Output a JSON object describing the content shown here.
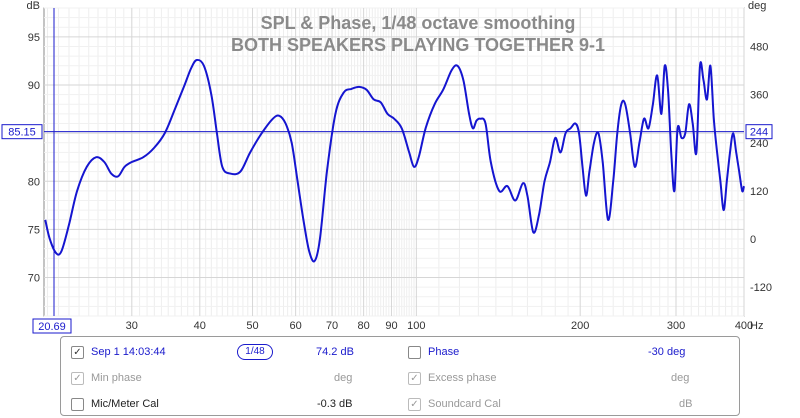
{
  "chart_data": {
    "type": "line",
    "title": "SPL & Phase, 1/48 octave smoothing",
    "subtitle": "BOTH SPEAKERS PLAYING TOGETHER 9-1",
    "y_left_unit": "dB",
    "y_right_unit": "deg",
    "x_unit": "Hz",
    "x_scale": "log",
    "xlim": [
      20.69,
      400
    ],
    "ylim_left": [
      66,
      98
    ],
    "ylim_right": [
      -192,
      576
    ],
    "x_ticks": [
      30,
      40,
      50,
      60,
      70,
      80,
      90,
      100,
      200,
      300,
      400
    ],
    "y_left_ticks": [
      70,
      75,
      80,
      85,
      90,
      95
    ],
    "y_right_ticks": [
      -120,
      0,
      120,
      240,
      360,
      480
    ],
    "cursor_y": "85.15",
    "cursor_y_right": "244",
    "cursor_x": "20.69",
    "grid": true,
    "series": [
      {
        "color": "#1515d0",
        "x": [
          20.8,
          21.2,
          21.8,
          22.3,
          23.0,
          23.8,
          24.8,
          25.8,
          26.7,
          27.5,
          28.3,
          29.1,
          30.0,
          31.5,
          33.0,
          34.5,
          36.0,
          37.5,
          38.6,
          39.5,
          40.7,
          42.0,
          43.0,
          44.0,
          45.5,
          47.5,
          49.5,
          52.0,
          54.5,
          56.0,
          57.5,
          59.0,
          60.5,
          62.0,
          63.5,
          65.0,
          66.5,
          68.5,
          71.0,
          73.5,
          76.0,
          78.5,
          81.0,
          83.5,
          86.0,
          88.5,
          91.0,
          94.0,
          97.0,
          99.0,
          101.0,
          104.0,
          108.0,
          112.0,
          116.0,
          119.0,
          122.0,
          125.0,
          127.0,
          129.0,
          131.0,
          134.0,
          137.0,
          142.0,
          147.0,
          152.0,
          157.0,
          160.0,
          164.0,
          168.0,
          172.0,
          176.0,
          180.0,
          184.0,
          188.0,
          192.0,
          196.0,
          199.0,
          202.0,
          205.0,
          208.0,
          212.0,
          216.0,
          220.0,
          225.0,
          230.0,
          234.0,
          238.0,
          242.0,
          247.0,
          252.0,
          257.0,
          262.0,
          267.0,
          272.0,
          277.0,
          282.0,
          286.0,
          290.0,
          294.0,
          298.0,
          302.0,
          307.0,
          312.0,
          317.0,
          322.0,
          327.0,
          332.0,
          337.0,
          342.0,
          347.0,
          352.0,
          357.0,
          362.0,
          367.0,
          372.0,
          377.0,
          382.0,
          387.0,
          392.0,
          397.0,
          400.0
        ],
        "y": [
          76.0,
          74.0,
          72.5,
          72.8,
          75.5,
          79.0,
          81.5,
          82.5,
          82.0,
          80.8,
          80.5,
          81.5,
          82.0,
          82.5,
          83.5,
          85.0,
          87.5,
          90.0,
          91.8,
          92.6,
          92.0,
          89.0,
          85.0,
          81.5,
          80.8,
          81.0,
          83.0,
          85.0,
          86.5,
          86.8,
          86.0,
          84.0,
          80.0,
          76.0,
          72.8,
          71.7,
          74.0,
          81.0,
          87.0,
          89.2,
          89.6,
          89.8,
          89.5,
          88.5,
          88.2,
          87.0,
          86.5,
          85.5,
          83.0,
          81.5,
          82.5,
          85.5,
          88.0,
          89.5,
          91.5,
          92.0,
          90.5,
          87.0,
          85.5,
          86.3,
          86.5,
          86.0,
          82.0,
          79.0,
          79.5,
          78.0,
          79.8,
          78.5,
          74.7,
          76.5,
          80.0,
          82.0,
          84.5,
          83.0,
          85.0,
          85.5,
          86.0,
          85.0,
          81.5,
          78.5,
          81.0,
          84.0,
          85.0,
          82.0,
          76.0,
          80.0,
          85.0,
          88.0,
          88.0,
          85.0,
          81.5,
          84.0,
          86.5,
          85.5,
          88.0,
          91.0,
          87.0,
          92.0,
          89.5,
          83.0,
          79.0,
          85.5,
          84.5,
          85.0,
          88.0,
          86.0,
          83.0,
          92.0,
          90.5,
          88.5,
          92.0,
          86.5,
          83.0,
          80.0,
          77.0,
          80.0,
          83.0,
          85.0,
          83.0,
          81.0,
          79.0,
          79.5
        ]
      }
    ]
  },
  "legend": {
    "rows": [
      {
        "checked": "✓",
        "label": "Sep 1 14:03:44",
        "smoothing": "1/48",
        "value": "74.2 dB",
        "label2": "Phase",
        "value2": "-30 deg"
      },
      {
        "checked": "✓",
        "label": "Min phase",
        "value": "deg",
        "checked2": "✓",
        "label2": "Excess phase",
        "value2": "deg"
      },
      {
        "checked": "",
        "label": "Mic/Meter Cal",
        "value": "-0.3 dB",
        "checked2": "✓",
        "label2": "Soundcard Cal",
        "value2": "dB"
      }
    ]
  }
}
